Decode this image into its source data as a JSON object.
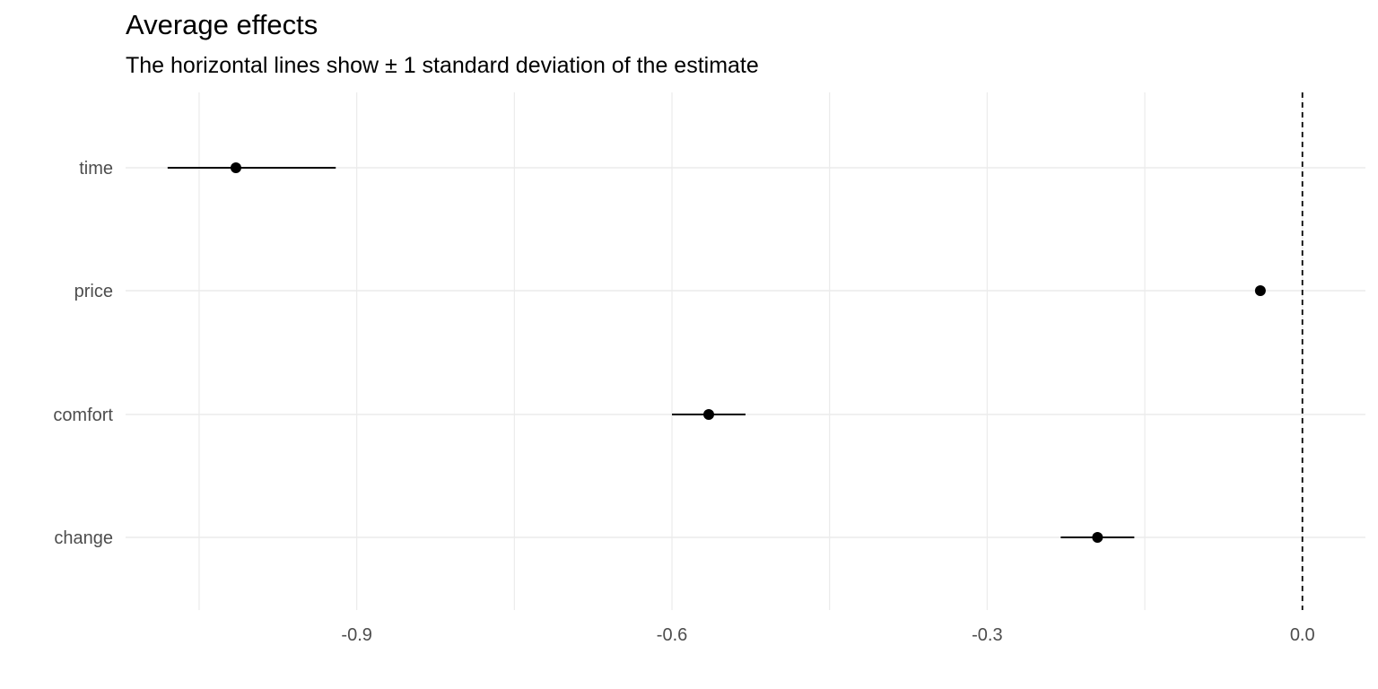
{
  "chart_data": {
    "type": "scatter",
    "title": "Average effects",
    "subtitle": "The horizontal lines show ± 1 standard deviation of the estimate",
    "xlabel": "",
    "ylabel": "",
    "categories": [
      "time",
      "price",
      "comfort",
      "change"
    ],
    "points": [
      {
        "label": "time",
        "estimate": -1.015,
        "low": -1.08,
        "high": -0.92
      },
      {
        "label": "price",
        "estimate": -0.04,
        "low": -0.042,
        "high": -0.038
      },
      {
        "label": "comfort",
        "estimate": -0.565,
        "low": -0.6,
        "high": -0.53
      },
      {
        "label": "change",
        "estimate": -0.195,
        "low": -0.23,
        "high": -0.16
      }
    ],
    "xticks": [
      -0.9,
      -0.6,
      -0.3,
      0.0
    ],
    "xtick_labels": [
      "-0.9",
      "-0.6",
      "-0.3",
      "0.0"
    ],
    "xlim": [
      -1.12,
      0.06
    ],
    "reference_line": {
      "x": 0.0,
      "style": "dashed"
    },
    "grid": true,
    "colors": {
      "point": "#000000",
      "grid": "#ebebeb",
      "text": "#4d4d4d"
    }
  }
}
